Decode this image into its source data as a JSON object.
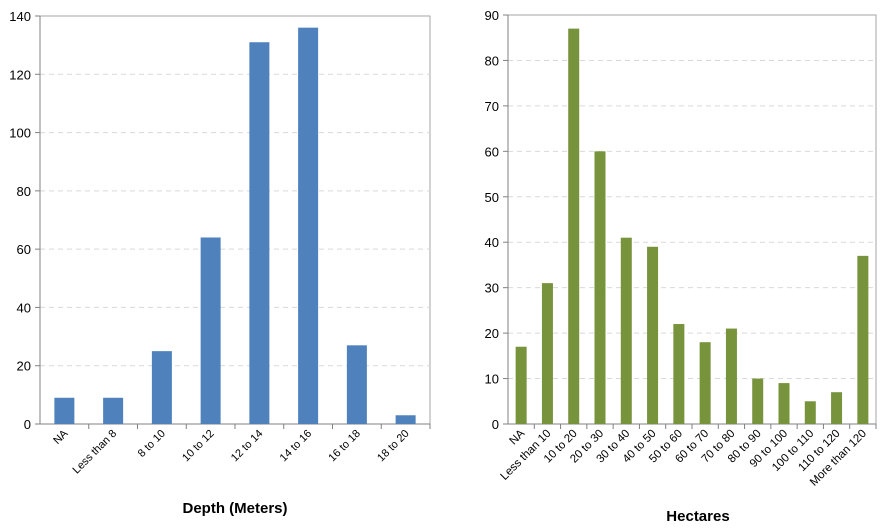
{
  "chart_data": [
    {
      "type": "bar",
      "title": "",
      "xlabel": "Depth (Meters)",
      "ylabel": "",
      "ylim": [
        0,
        140
      ],
      "yticks": [
        0,
        20,
        40,
        60,
        80,
        100,
        120,
        140
      ],
      "grid": true,
      "color": "#4f81bd",
      "categories": [
        "NA",
        "Less than 8",
        "8 to 10",
        "10 to 12",
        "12 to 14",
        "14 to 16",
        "16 to 18",
        "18 to 20"
      ],
      "values": [
        9,
        9,
        25,
        64,
        131,
        136,
        27,
        3
      ]
    },
    {
      "type": "bar",
      "title": "",
      "xlabel": "Hectares",
      "ylabel": "",
      "ylim": [
        0,
        90
      ],
      "yticks": [
        0,
        10,
        20,
        30,
        40,
        50,
        60,
        70,
        80,
        90
      ],
      "grid": true,
      "color": "#77933c",
      "categories": [
        "NA",
        "Less than 10",
        "10 to 20",
        "20 to 30",
        "30 to 40",
        "40 to 50",
        "50 to 60",
        "60 to 70",
        "70 to 80",
        "80 to 90",
        "90 to 100",
        "100 to 110",
        "110 to 120",
        "More than 120"
      ],
      "values": [
        17,
        31,
        87,
        60,
        41,
        39,
        22,
        18,
        21,
        10,
        9,
        5,
        7,
        37
      ]
    }
  ]
}
